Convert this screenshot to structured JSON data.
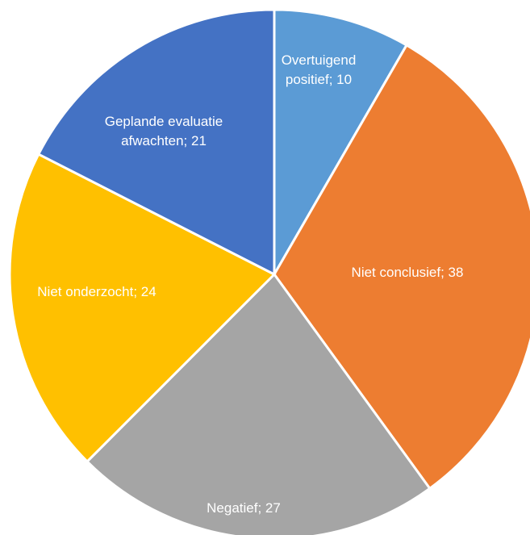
{
  "chart_data": {
    "type": "pie",
    "values": [
      10,
      38,
      27,
      24,
      21
    ],
    "value_labels": [
      "Overtuigend positief; 10",
      "Niet conclusief; 38",
      "Negatief; 27",
      "Niet onderzocht; 24",
      "Geplande evaluatie afwachten; 21"
    ],
    "colors": [
      "#5b9bd5",
      "#ed7d31",
      "#a5a5a5",
      "#ffc000",
      "#4472c4"
    ]
  }
}
